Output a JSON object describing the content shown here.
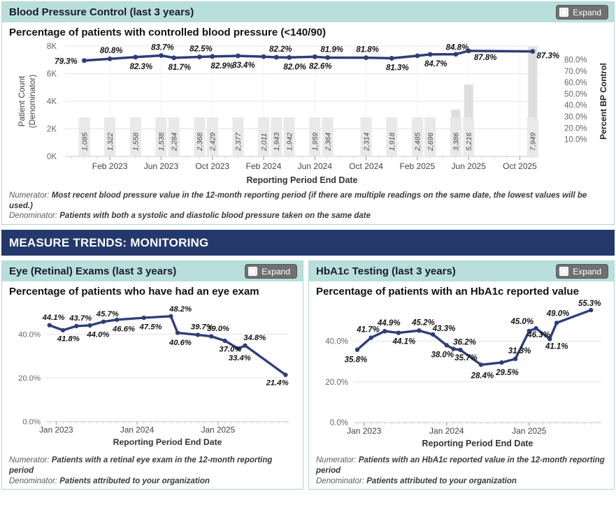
{
  "colors": {
    "header_teal": "#b9dfdd",
    "panel_border": "#aed7d5",
    "banner_bg": "#24386b",
    "line": "#2e3e78",
    "bar": "#dedede",
    "bar_plate": "#e9e9e9",
    "grid": "#e4e4e4",
    "vgrid": "#f1f1f1",
    "baseline": "#c8c8c8",
    "minor_tick": "#cfcfcf",
    "major_tick": "#999999"
  },
  "banner": {
    "title": "MEASURE TRENDS: MONITORING"
  },
  "bp_panel": {
    "title": "Blood Pressure Control (last 3 years)",
    "expand_label": "Expand",
    "subtitle": "Percentage of patients with controlled blood pressure (<140/90)",
    "numerator_label": "Numerator:",
    "numerator_text": "Most recent blood pressure value in the 12-month reporting period (if there are multiple readings on the same date, the lowest values will be used.)",
    "denominator_label": "Denominator:",
    "denominator_text": "Patients with both a systolic and diastolic blood pressure taken on the same date",
    "chart_data": {
      "type": "bar+line",
      "xlabel": "Reporting Period End Date",
      "ylabel_left_lines": [
        "Patient Count",
        "(Denominator)"
      ],
      "ylabel_right": "Percent BP Control",
      "y_left_max": 8000,
      "y_left_ticks": [
        {
          "v": 0,
          "label": "0K"
        },
        {
          "v": 2000,
          "label": "2K"
        },
        {
          "v": 4000,
          "label": "4K"
        },
        {
          "v": 6000,
          "label": "6K"
        },
        {
          "v": 8000,
          "label": "8K"
        }
      ],
      "y_right_range": [
        -5,
        92
      ],
      "y_right_ticks": [
        {
          "v": 10,
          "label": "10.0%"
        },
        {
          "v": 20,
          "label": "20.0%"
        },
        {
          "v": 30,
          "label": "30.0%"
        },
        {
          "v": 40,
          "label": "40.0%"
        },
        {
          "v": 50,
          "label": "50.0%"
        },
        {
          "v": 60,
          "label": "60.0%"
        },
        {
          "v": 70,
          "label": "70.0%"
        },
        {
          "v": 80,
          "label": "80.0%"
        }
      ],
      "n_slots": 37,
      "x_ticks": [
        {
          "m": 3,
          "label": "Feb 2023"
        },
        {
          "m": 7,
          "label": "Jun 2023"
        },
        {
          "m": 11,
          "label": "Oct 2023"
        },
        {
          "m": 15,
          "label": "Feb 2024"
        },
        {
          "m": 19,
          "label": "Jun 2024"
        },
        {
          "m": 23,
          "label": "Oct 2024"
        },
        {
          "m": 27,
          "label": "Feb 2025"
        },
        {
          "m": 31,
          "label": "Jun 2025"
        },
        {
          "m": 35,
          "label": "Oct 2025"
        }
      ],
      "points": [
        {
          "m": 1,
          "count": 1085,
          "count_label": "1,085",
          "pct": 79.3,
          "pct_label": "79.3%",
          "pos": "below",
          "o": [
            -26,
            5
          ]
        },
        {
          "m": 3,
          "count": 1322,
          "count_label": "1,322",
          "pct": 80.8,
          "pct_label": "80.8%",
          "pos": "above"
        },
        {
          "m": 5,
          "count": 1558,
          "count_label": "1,558",
          "pct": 82.3,
          "pct_label": "82.3%",
          "pos": "below"
        },
        {
          "m": 7,
          "count": 1538,
          "count_label": "1,538",
          "pct": 83.7,
          "pct_label": "83.7%",
          "pos": "above"
        },
        {
          "m": 8,
          "count": 2284,
          "count_label": "2,284",
          "pct": 81.7,
          "pct_label": "81.7%",
          "pos": "below"
        },
        {
          "m": 10,
          "count": 2368,
          "count_label": "2,368",
          "pct": 82.5,
          "pct_label": "82.5%",
          "pos": "above"
        },
        {
          "m": 11,
          "count": 2429,
          "count_label": "2,429",
          "pct": 82.9,
          "pct_label": "82.9%",
          "pos": "below",
          "o": [
            14,
            17
          ]
        },
        {
          "m": 13,
          "count": 2377,
          "count_label": "2,377",
          "pct": 83.4,
          "pct_label": "83.4%",
          "pos": "below"
        },
        {
          "m": 15,
          "count": 2011,
          "count_label": "2,011",
          "pct": 82.7,
          "pct_label": null,
          "pos": "above"
        },
        {
          "m": 16,
          "count": 1943,
          "count_label": "1,943",
          "pct": 82.2,
          "pct_label": "82.2%",
          "pos": "above",
          "o": [
            6,
            -8
          ]
        },
        {
          "m": 17,
          "count": 1942,
          "count_label": "1,942",
          "pct": 82.0,
          "pct_label": "82.0%",
          "pos": "below"
        },
        {
          "m": 19,
          "count": 1959,
          "count_label": "1,959",
          "pct": 82.6,
          "pct_label": "82.6%",
          "pos": "below"
        },
        {
          "m": 20,
          "count": 2364,
          "count_label": "2,364",
          "pct": 81.9,
          "pct_label": "81.9%",
          "pos": "above",
          "o": [
            6,
            -8
          ]
        },
        {
          "m": 23,
          "count": 2314,
          "count_label": "2,314",
          "pct": 81.8,
          "pct_label": "81.8%",
          "pos": "above"
        },
        {
          "m": 25,
          "count": 1918,
          "count_label": "1,918",
          "pct": 81.3,
          "pct_label": "81.3%",
          "pos": "below"
        },
        {
          "m": 27,
          "count": 2485,
          "count_label": "2,485",
          "pct": 83.5,
          "pct_label": null,
          "pos": "below"
        },
        {
          "m": 28,
          "count": 2696,
          "count_label": "2,696",
          "pct": 84.7,
          "pct_label": "84.7%",
          "pos": "below"
        },
        {
          "m": 30,
          "count": 3386,
          "count_label": "3,386",
          "pct": 84.8,
          "pct_label": "84.8%",
          "pos": "above",
          "o": [
            2,
            -6
          ]
        },
        {
          "m": 31,
          "count": 5216,
          "count_label": "5,216",
          "pct": 87.8,
          "pct_label": "87.8%",
          "pos": "below",
          "o": [
            24,
            13
          ]
        },
        {
          "m": 36,
          "count": 7949,
          "count_label": "7,949",
          "pct": 87.3,
          "pct_label": "87.3%",
          "pos": "below",
          "o": [
            22,
            10
          ]
        }
      ]
    }
  },
  "eye_panel": {
    "title": "Eye (Retinal) Exams (last 3 years)",
    "expand_label": "Expand",
    "subtitle": "Percentage of patients who have had an eye exam",
    "numerator_label": "Numerator:",
    "numerator_text": "Patients with a retinal eye exam in the 12-month reporting period",
    "denominator_label": "Denominator:",
    "denominator_text": "Patients attributed to your organization",
    "chart_data": {
      "type": "line",
      "xlabel": "Reporting Period End Date",
      "y_max": 52,
      "y_ticks": [
        {
          "v": 0,
          "label": "0.0%"
        },
        {
          "v": 20,
          "label": "20.0%"
        },
        {
          "v": 40,
          "label": "40.0%"
        }
      ],
      "n_slots": 36,
      "x_ticks": [
        {
          "m": 1,
          "label": "Jan 2023"
        },
        {
          "m": 13,
          "label": "Jan 2024"
        },
        {
          "m": 25,
          "label": "Jan 2025"
        }
      ],
      "points": [
        {
          "m": 0,
          "pct": 44.1,
          "pct_label": "44.1%",
          "pos": "above"
        },
        {
          "m": 2,
          "pct": 41.8,
          "pct_label": "41.8%",
          "pos": "below"
        },
        {
          "m": 4,
          "pct": 43.7,
          "pct_label": "43.7%",
          "pos": "above"
        },
        {
          "m": 6,
          "pct": 44.0,
          "pct_label": "44.0%",
          "pos": "below",
          "o": [
            12,
            17
          ]
        },
        {
          "m": 8,
          "pct": 45.7,
          "pct_label": "45.7%",
          "pos": "above"
        },
        {
          "m": 10,
          "pct": 46.6,
          "pct_label": "46.6%",
          "pos": "below",
          "o": [
            10,
            17
          ]
        },
        {
          "m": 14,
          "pct": 47.5,
          "pct_label": "47.5%",
          "pos": "below",
          "o": [
            10,
            17
          ]
        },
        {
          "m": 18,
          "pct": 48.2,
          "pct_label": "48.2%",
          "pos": "above",
          "o": [
            14,
            -7
          ]
        },
        {
          "m": 19,
          "pct": 40.6,
          "pct_label": "40.6%",
          "pos": "below",
          "o": [
            4,
            18
          ]
        },
        {
          "m": 22,
          "pct": 39.7,
          "pct_label": "39.7%",
          "pos": "above"
        },
        {
          "m": 24,
          "pct": 39.0,
          "pct_label": "39.0%",
          "pos": "above",
          "o": [
            10,
            -8
          ]
        },
        {
          "m": 26,
          "pct": 37.0,
          "pct_label": "37.0%",
          "pos": "below"
        },
        {
          "m": 28,
          "pct": 33.4,
          "pct_label": "33.4%",
          "pos": "below",
          "o": [
            2,
            17
          ]
        },
        {
          "m": 29,
          "pct": 34.8,
          "pct_label": "34.8%",
          "pos": "above",
          "o": [
            14,
            -8
          ]
        },
        {
          "m": 35,
          "pct": 21.4,
          "pct_label": "21.4%",
          "pos": "below",
          "o": [
            -12,
            15
          ]
        }
      ]
    }
  },
  "hba1c_panel": {
    "title": "HbA1c Testing (last 3 years)",
    "expand_label": "Expand",
    "subtitle": "Percentage of patients with an HbA1c reported value",
    "numerator_label": "Numerator:",
    "numerator_text": "Patients with an HbA1c reported value in the 12-month reporting period",
    "denominator_label": "Denominator:",
    "denominator_text": "Patients attributed to your organization",
    "chart_data": {
      "type": "line",
      "xlabel": "Reporting Period End Date",
      "y_max": 57,
      "y_ticks": [
        {
          "v": 0,
          "label": "0.0%"
        },
        {
          "v": 20,
          "label": "20.0%"
        },
        {
          "v": 40,
          "label": "40.0%"
        }
      ],
      "n_slots": 36,
      "x_ticks": [
        {
          "m": 1,
          "label": "Jan 2023"
        },
        {
          "m": 13,
          "label": "Jan 2024"
        },
        {
          "m": 25,
          "label": "Jan 2025"
        }
      ],
      "points": [
        {
          "m": 0,
          "pct": 35.8,
          "pct_label": "35.8%",
          "pos": "below",
          "o": [
            -2,
            18
          ]
        },
        {
          "m": 2,
          "pct": 41.7,
          "pct_label": "41.7%",
          "pos": "above",
          "o": [
            -4,
            -8
          ]
        },
        {
          "m": 4,
          "pct": 44.9,
          "pct_label": "44.9%",
          "pos": "above"
        },
        {
          "m": 6,
          "pct": 44.1,
          "pct_label": "44.1%",
          "pos": "below"
        },
        {
          "m": 9,
          "pct": 45.2,
          "pct_label": "45.2%",
          "pos": "above"
        },
        {
          "m": 11,
          "pct": 43.3,
          "pct_label": "43.3%",
          "pos": "above",
          "o": [
            16,
            -5
          ]
        },
        {
          "m": 13,
          "pct": 38.0,
          "pct_label": "38.0%",
          "pos": "below",
          "o": [
            -6,
            17
          ]
        },
        {
          "m": 14,
          "pct": 36.2,
          "pct_label": "36.2%",
          "pos": "above",
          "o": [
            16,
            -6
          ]
        },
        {
          "m": 15,
          "pct": 35.7,
          "pct_label": "35.7%",
          "pos": "below",
          "o": [
            8,
            15
          ]
        },
        {
          "m": 18,
          "pct": 28.4,
          "pct_label": "28.4%",
          "pos": "below",
          "o": [
            2,
            19
          ]
        },
        {
          "m": 21,
          "pct": 29.5,
          "pct_label": "29.5%",
          "pos": "below",
          "o": [
            8,
            18
          ]
        },
        {
          "m": 23,
          "pct": 31.3,
          "pct_label": "31.3%",
          "pos": "above"
        },
        {
          "m": 25,
          "pct": 45.0,
          "pct_label": "45.0%",
          "pos": "above",
          "o": [
            -10,
            -10
          ]
        },
        {
          "m": 26,
          "pct": 46.3,
          "pct_label": "46.3%",
          "pos": "below",
          "o": [
            4,
            13
          ]
        },
        {
          "m": 28,
          "pct": 41.1,
          "pct_label": "41.1%",
          "pos": "below",
          "o": [
            10,
            14
          ]
        },
        {
          "m": 29,
          "pct": 49.0,
          "pct_label": "49.0%",
          "pos": "above",
          "o": [
            2,
            -10
          ]
        },
        {
          "m": 34,
          "pct": 55.3,
          "pct_label": "55.3%",
          "pos": "above",
          "o": [
            -2,
            -6
          ]
        }
      ]
    }
  }
}
